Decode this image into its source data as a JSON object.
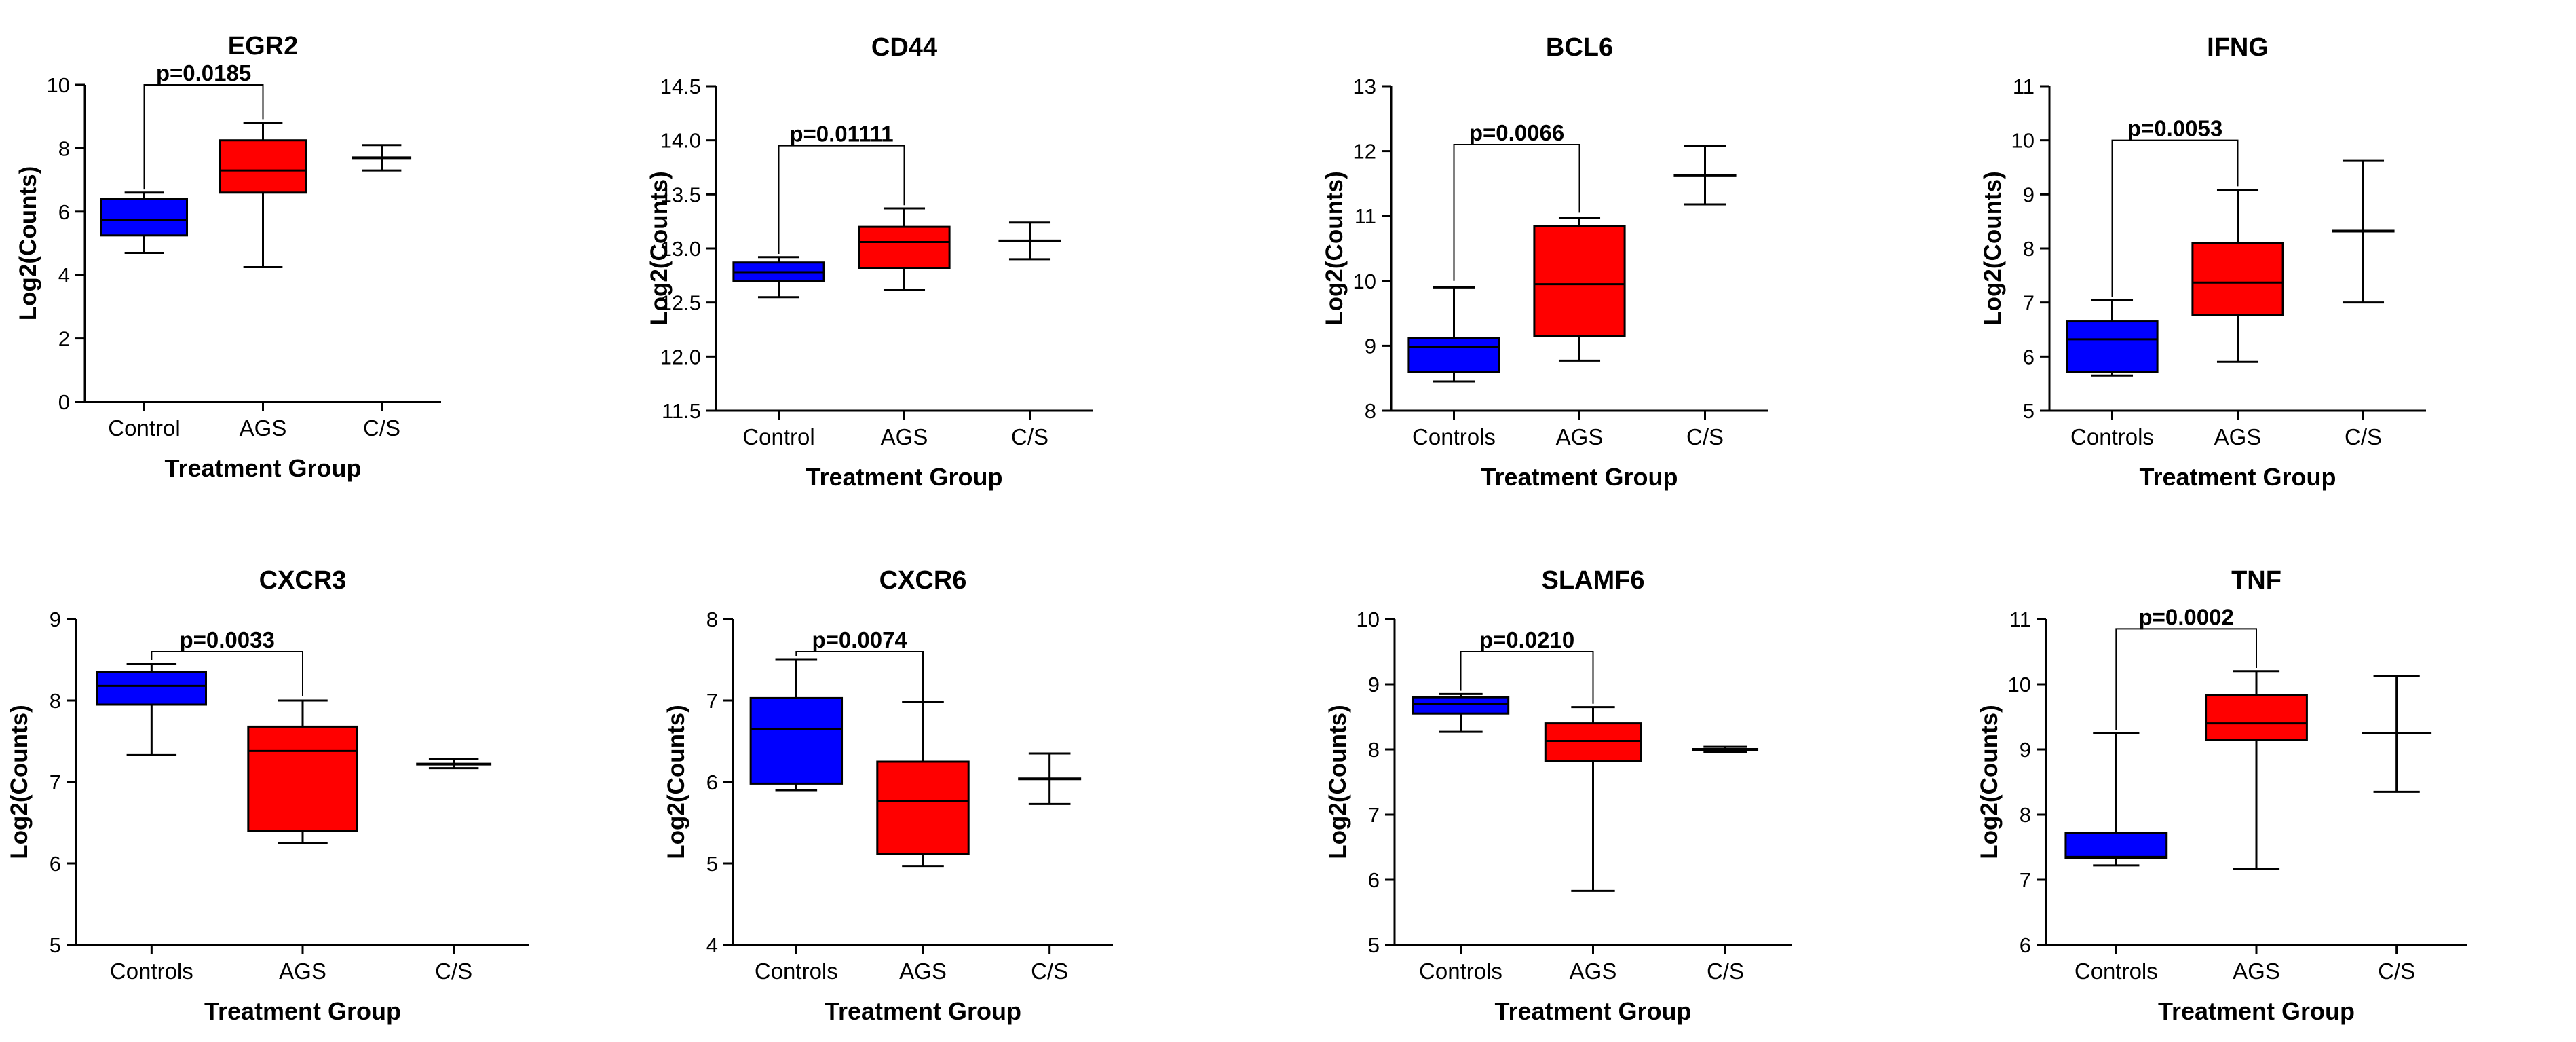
{
  "chart_data": [
    {
      "type": "box",
      "title": "EGR2",
      "ylabel": "Log2(Counts)",
      "xlabel": "Treatment Group",
      "ylim": [
        0,
        10
      ],
      "yticks": [
        0,
        2,
        4,
        6,
        8,
        10
      ],
      "categories": [
        "Control",
        "AGS",
        "C/S"
      ],
      "boxes": [
        {
          "min": 4.7,
          "q1": 5.25,
          "median": 5.75,
          "q3": 6.4,
          "max": 6.6,
          "color": "#0000ff"
        },
        {
          "min": 4.25,
          "q1": 6.6,
          "median": 7.3,
          "q3": 8.25,
          "max": 8.8,
          "color": "#ff0000"
        },
        {
          "min": 7.3,
          "q1": 7.7,
          "median": 7.7,
          "q3": 7.7,
          "max": 8.1,
          "color": "#000000"
        }
      ],
      "annotation": {
        "text": "p=0.0185",
        "from": 0,
        "to": 1,
        "y": 10.0,
        "left_end": 6.7,
        "right_end": 8.9
      }
    },
    {
      "type": "box",
      "title": "CD44",
      "ylabel": "Log2(Counts)",
      "xlabel": "Treatment Group",
      "ylim": [
        11.5,
        14.5
      ],
      "yticks": [
        11.5,
        12.0,
        12.5,
        13.0,
        13.5,
        14.0,
        14.5
      ],
      "ytick_labels": [
        "11.5",
        "12.0",
        "12.5",
        "13.0",
        "13.5",
        "14.0",
        "14.5"
      ],
      "categories": [
        "Control",
        "AGS",
        "C/S"
      ],
      "boxes": [
        {
          "min": 12.55,
          "q1": 12.7,
          "median": 12.78,
          "q3": 12.87,
          "max": 12.92,
          "color": "#0000ff"
        },
        {
          "min": 12.62,
          "q1": 12.82,
          "median": 13.06,
          "q3": 13.2,
          "max": 13.37,
          "color": "#ff0000"
        },
        {
          "min": 12.9,
          "q1": 13.07,
          "median": 13.07,
          "q3": 13.07,
          "max": 13.24,
          "color": "#000000"
        }
      ],
      "annotation": {
        "text": "p=0.01111",
        "from": 0,
        "to": 1,
        "y": 13.95,
        "left_end": 12.95,
        "right_end": 13.4
      }
    },
    {
      "type": "box",
      "title": "BCL6",
      "ylabel": "Log2(Counts)",
      "xlabel": "Treatment Group",
      "ylim": [
        8,
        13
      ],
      "yticks": [
        8,
        9,
        10,
        11,
        12,
        13
      ],
      "categories": [
        "Controls",
        "AGS",
        "C/S"
      ],
      "boxes": [
        {
          "min": 8.45,
          "q1": 8.6,
          "median": 8.98,
          "q3": 9.12,
          "max": 9.9,
          "color": "#0000ff"
        },
        {
          "min": 8.77,
          "q1": 9.15,
          "median": 9.95,
          "q3": 10.85,
          "max": 10.97,
          "color": "#ff0000"
        },
        {
          "min": 11.18,
          "q1": 11.62,
          "median": 11.62,
          "q3": 11.62,
          "max": 12.08,
          "color": "#000000"
        }
      ],
      "annotation": {
        "text": "p=0.0066",
        "from": 0,
        "to": 1,
        "y": 12.1,
        "left_end": 10.0,
        "right_end": 11.05
      }
    },
    {
      "type": "box",
      "title": "IFNG",
      "ylabel": "Log2(Counts)",
      "xlabel": "Treatment Group",
      "ylim": [
        5,
        11
      ],
      "yticks": [
        5,
        6,
        7,
        8,
        9,
        10,
        11
      ],
      "categories": [
        "Controls",
        "AGS",
        "C/S"
      ],
      "boxes": [
        {
          "min": 5.65,
          "q1": 5.72,
          "median": 6.32,
          "q3": 6.65,
          "max": 7.05,
          "color": "#0000ff"
        },
        {
          "min": 5.9,
          "q1": 6.77,
          "median": 7.37,
          "q3": 8.1,
          "max": 9.08,
          "color": "#ff0000"
        },
        {
          "min": 7.0,
          "q1": 8.32,
          "median": 8.32,
          "q3": 8.32,
          "max": 9.63,
          "color": "#000000"
        }
      ],
      "annotation": {
        "text": "p=0.0053",
        "from": 0,
        "to": 1,
        "y": 10.0,
        "left_end": 7.1,
        "right_end": 9.15
      }
    },
    {
      "type": "box",
      "title": "CXCR3",
      "ylabel": "Log2(Counts)",
      "xlabel": "Treatment Group",
      "ylim": [
        5,
        9
      ],
      "yticks": [
        5,
        6,
        7,
        8,
        9
      ],
      "categories": [
        "Controls",
        "AGS",
        "C/S"
      ],
      "boxes": [
        {
          "min": 7.33,
          "q1": 7.95,
          "median": 8.18,
          "q3": 8.35,
          "max": 8.45,
          "color": "#0000ff"
        },
        {
          "min": 6.25,
          "q1": 6.4,
          "median": 7.38,
          "q3": 7.68,
          "max": 8.0,
          "color": "#ff0000"
        },
        {
          "min": 7.17,
          "q1": 7.22,
          "median": 7.22,
          "q3": 7.22,
          "max": 7.28,
          "color": "#000000"
        }
      ],
      "annotation": {
        "text": "p=0.0033",
        "from": 0,
        "to": 1,
        "y": 8.6,
        "left_end": 8.5,
        "right_end": 8.05
      }
    },
    {
      "type": "box",
      "title": "CXCR6",
      "ylabel": "Log2(Counts)",
      "xlabel": "Treatment Group",
      "ylim": [
        4,
        8
      ],
      "yticks": [
        4,
        5,
        6,
        7,
        8
      ],
      "categories": [
        "Controls",
        "AGS",
        "C/S"
      ],
      "boxes": [
        {
          "min": 5.9,
          "q1": 5.98,
          "median": 6.65,
          "q3": 7.03,
          "max": 7.5,
          "color": "#0000ff"
        },
        {
          "min": 4.97,
          "q1": 5.12,
          "median": 5.77,
          "q3": 6.25,
          "max": 6.98,
          "color": "#ff0000"
        },
        {
          "min": 5.73,
          "q1": 6.04,
          "median": 6.04,
          "q3": 6.04,
          "max": 6.35,
          "color": "#000000"
        }
      ],
      "annotation": {
        "text": "p=0.0074",
        "from": 0,
        "to": 1,
        "y": 7.6,
        "left_end": 7.55,
        "right_end": 7.0
      }
    },
    {
      "type": "box",
      "title": "SLAMF6",
      "ylabel": "Log2(Counts)",
      "xlabel": "Treatment Group",
      "ylim": [
        5,
        10
      ],
      "yticks": [
        5,
        6,
        7,
        8,
        9,
        10
      ],
      "categories": [
        "Controls",
        "AGS",
        "C/S"
      ],
      "boxes": [
        {
          "min": 8.27,
          "q1": 8.55,
          "median": 8.7,
          "q3": 8.8,
          "max": 8.85,
          "color": "#0000ff"
        },
        {
          "min": 5.83,
          "q1": 7.82,
          "median": 8.13,
          "q3": 8.4,
          "max": 8.65,
          "color": "#ff0000"
        },
        {
          "min": 7.96,
          "q1": 8.0,
          "median": 8.0,
          "q3": 8.0,
          "max": 8.04,
          "color": "#000000"
        }
      ],
      "annotation": {
        "text": "p=0.0210",
        "from": 0,
        "to": 1,
        "y": 9.5,
        "left_end": 8.9,
        "right_end": 8.7
      }
    },
    {
      "type": "box",
      "title": "TNF",
      "ylabel": "Log2(Counts)",
      "xlabel": "Treatment Group",
      "ylim": [
        6,
        11
      ],
      "yticks": [
        6,
        7,
        8,
        9,
        10,
        11
      ],
      "categories": [
        "Controls",
        "AGS",
        "C/S"
      ],
      "boxes": [
        {
          "min": 7.22,
          "q1": 7.33,
          "median": 7.35,
          "q3": 7.72,
          "max": 9.25,
          "color": "#0000ff"
        },
        {
          "min": 7.17,
          "q1": 9.15,
          "median": 9.4,
          "q3": 9.83,
          "max": 10.2,
          "color": "#ff0000"
        },
        {
          "min": 8.35,
          "q1": 9.25,
          "median": 9.25,
          "q3": 9.25,
          "max": 10.13,
          "color": "#000000"
        }
      ],
      "annotation": {
        "text": "p=0.0002",
        "from": 0,
        "to": 1,
        "y": 10.85,
        "left_end": 9.3,
        "right_end": 10.25
      }
    }
  ]
}
